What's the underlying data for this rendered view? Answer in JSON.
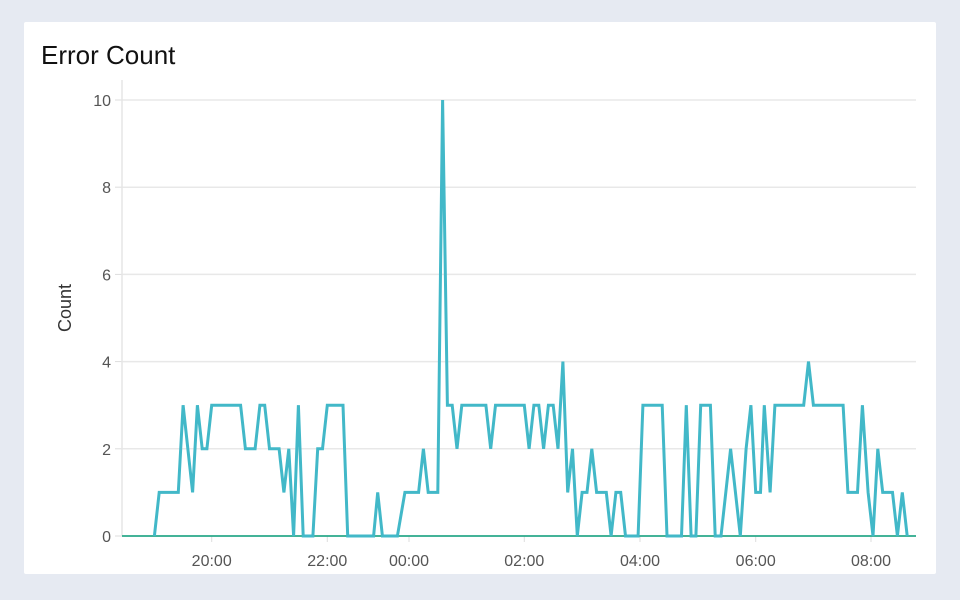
{
  "chart_data": {
    "type": "line",
    "title": "Error Count",
    "xlabel": "",
    "ylabel": "Count",
    "ylim": [
      0,
      10
    ],
    "yticks": [
      "0",
      "2",
      "4",
      "6",
      "8",
      "10"
    ],
    "xticks": [
      "20:00",
      "22:00",
      "00:00",
      "02:00",
      "04:00",
      "06:00",
      "08:00"
    ],
    "xlim": [
      "18:26",
      "08:46"
    ],
    "grid": true,
    "legend": "none",
    "series": [
      {
        "color": "#42b8c8",
        "points": [
          [
            "19:00",
            0
          ],
          [
            "19:05",
            1
          ],
          [
            "19:25",
            1
          ],
          [
            "19:30",
            3
          ],
          [
            "19:40",
            1
          ],
          [
            "19:45",
            3
          ],
          [
            "19:50",
            2
          ],
          [
            "19:55",
            2
          ],
          [
            "20:00",
            3
          ],
          [
            "20:30",
            3
          ],
          [
            "20:35",
            2
          ],
          [
            "20:45",
            2
          ],
          [
            "20:50",
            3
          ],
          [
            "20:55",
            3
          ],
          [
            "21:00",
            2
          ],
          [
            "21:10",
            2
          ],
          [
            "21:15",
            1
          ],
          [
            "21:20",
            2
          ],
          [
            "21:25",
            0
          ],
          [
            "21:30",
            3
          ],
          [
            "21:35",
            0
          ],
          [
            "21:45",
            0
          ],
          [
            "21:50",
            2
          ],
          [
            "21:55",
            2
          ],
          [
            "22:00",
            3
          ],
          [
            "22:23",
            3
          ],
          [
            "22:30",
            0
          ],
          [
            "23:08",
            0
          ],
          [
            "23:14",
            1
          ],
          [
            "23:21",
            0
          ],
          [
            "23:43",
            0
          ],
          [
            "23:54",
            1
          ],
          [
            "00:10",
            1
          ],
          [
            "00:15",
            2
          ],
          [
            "00:20",
            1
          ],
          [
            "00:30",
            1
          ],
          [
            "00:35",
            10
          ],
          [
            "00:40",
            3
          ],
          [
            "00:45",
            3
          ],
          [
            "00:50",
            2
          ],
          [
            "00:55",
            3
          ],
          [
            "01:20",
            3
          ],
          [
            "01:25",
            2
          ],
          [
            "01:30",
            3
          ],
          [
            "02:00",
            3
          ],
          [
            "02:05",
            2
          ],
          [
            "02:10",
            3
          ],
          [
            "02:15",
            3
          ],
          [
            "02:20",
            2
          ],
          [
            "02:25",
            3
          ],
          [
            "02:30",
            3
          ],
          [
            "02:35",
            2
          ],
          [
            "02:40",
            4
          ],
          [
            "02:45",
            1
          ],
          [
            "02:50",
            2
          ],
          [
            "02:55",
            0
          ],
          [
            "03:00",
            1
          ],
          [
            "03:05",
            1
          ],
          [
            "03:10",
            2
          ],
          [
            "03:15",
            1
          ],
          [
            "03:25",
            1
          ],
          [
            "03:30",
            0
          ],
          [
            "03:35",
            1
          ],
          [
            "03:40",
            1
          ],
          [
            "03:45",
            0
          ],
          [
            "03:58",
            0
          ],
          [
            "04:03",
            3
          ],
          [
            "04:23",
            3
          ],
          [
            "04:28",
            0
          ],
          [
            "04:43",
            0
          ],
          [
            "04:48",
            3
          ],
          [
            "04:53",
            0
          ],
          [
            "04:58",
            0
          ],
          [
            "05:03",
            3
          ],
          [
            "05:13",
            3
          ],
          [
            "05:18",
            0
          ],
          [
            "05:24",
            0
          ],
          [
            "05:34",
            2
          ],
          [
            "05:44",
            0
          ],
          [
            "05:50",
            2
          ],
          [
            "05:55",
            3
          ],
          [
            "06:00",
            1
          ],
          [
            "06:05",
            1
          ],
          [
            "06:09",
            3
          ],
          [
            "06:15",
            1
          ],
          [
            "06:20",
            3
          ],
          [
            "06:50",
            3
          ],
          [
            "06:55",
            4
          ],
          [
            "07:00",
            3
          ],
          [
            "07:31",
            3
          ],
          [
            "07:36",
            1
          ],
          [
            "07:46",
            1
          ],
          [
            "07:51",
            3
          ],
          [
            "07:57",
            1
          ],
          [
            "08:02",
            0
          ],
          [
            "08:07",
            2
          ],
          [
            "08:12",
            1
          ],
          [
            "08:22",
            1
          ],
          [
            "08:27",
            0
          ],
          [
            "08:32",
            1
          ],
          [
            "08:37",
            0
          ]
        ]
      },
      {
        "color": "#2aa88a",
        "points": [
          [
            "18:26",
            0
          ],
          [
            "08:46",
            0
          ]
        ]
      }
    ]
  }
}
